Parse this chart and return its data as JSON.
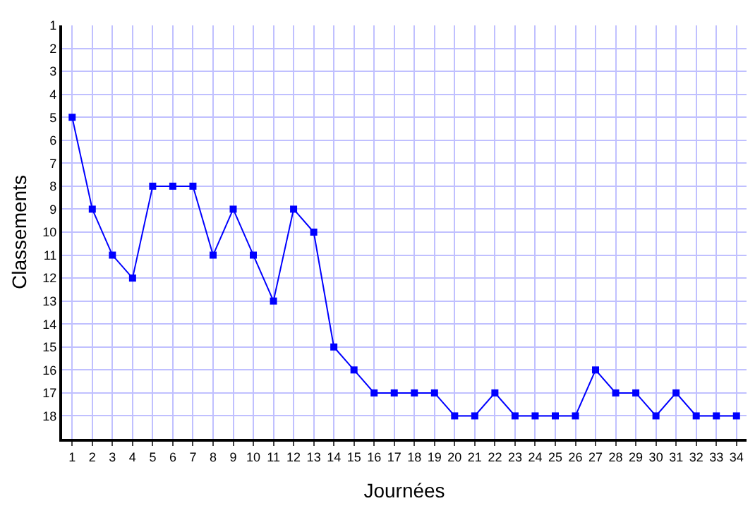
{
  "chart_data": {
    "type": "line",
    "xlabel": "Journées",
    "ylabel": "Classements",
    "x": [
      1,
      2,
      3,
      4,
      5,
      6,
      7,
      8,
      9,
      10,
      11,
      12,
      13,
      14,
      15,
      16,
      17,
      18,
      19,
      20,
      21,
      22,
      23,
      24,
      25,
      26,
      27,
      28,
      29,
      30,
      31,
      32,
      33,
      34
    ],
    "series": [
      {
        "color": "#0000ff",
        "values": [
          5,
          9,
          11,
          12,
          8,
          8,
          8,
          11,
          9,
          11,
          13,
          9,
          10,
          15,
          16,
          17,
          17,
          17,
          17,
          18,
          18,
          17,
          18,
          18,
          18,
          18,
          16,
          17,
          17,
          18,
          17,
          18,
          18,
          18
        ]
      }
    ],
    "xlim": [
      0.5,
      34.5
    ],
    "xticks": [
      1,
      2,
      3,
      4,
      5,
      6,
      7,
      8,
      9,
      10,
      11,
      12,
      13,
      14,
      15,
      16,
      17,
      18,
      19,
      20,
      21,
      22,
      23,
      24,
      25,
      26,
      27,
      28,
      29,
      30,
      31,
      32,
      33,
      34
    ],
    "ylim": [
      19,
      1
    ],
    "yticks": [
      1,
      2,
      3,
      4,
      5,
      6,
      7,
      8,
      9,
      10,
      11,
      12,
      13,
      14,
      15,
      16,
      17,
      18
    ],
    "grid": true,
    "marker": "square",
    "line_style": "solid"
  }
}
